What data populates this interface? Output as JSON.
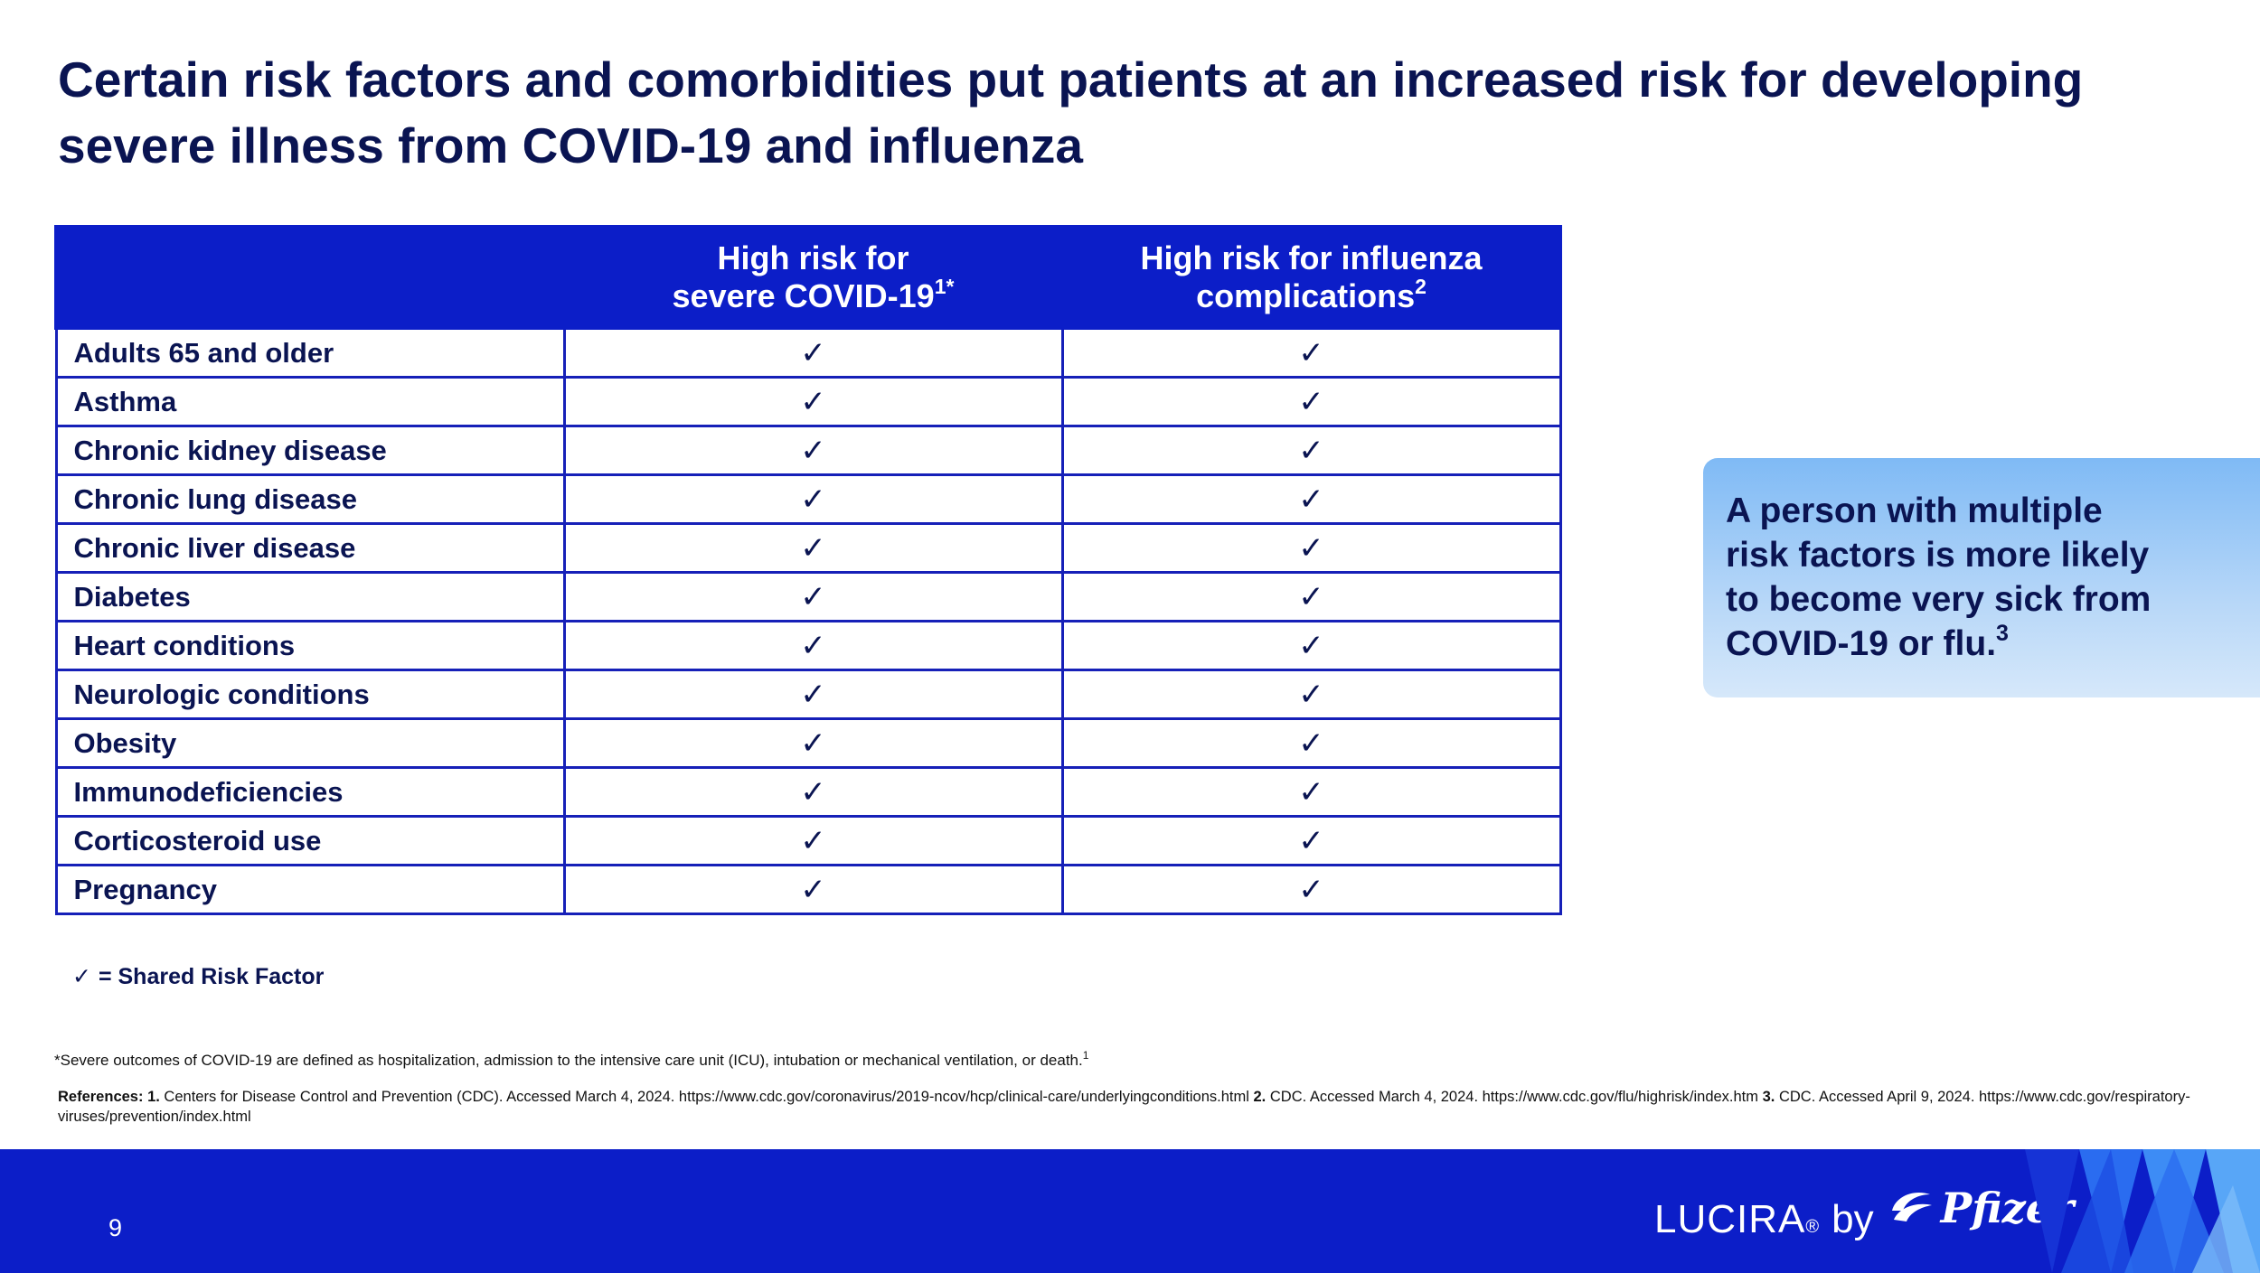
{
  "title": {
    "line1": "Certain risk factors and comorbidities put patients at an increased risk for developing",
    "line2": "severe illness from COVID-19 and influenza"
  },
  "table": {
    "headers": [
      {
        "line1": "",
        "line2": "",
        "sup": ""
      },
      {
        "line1": "High risk for",
        "line2": "severe COVID-19",
        "sup": "1*"
      },
      {
        "line1": "High risk for influenza",
        "line2": "complications",
        "sup": "2"
      }
    ],
    "check_mark": "✓",
    "rows": [
      {
        "label": "Adults 65 and older",
        "covid": "✓",
        "influenza": "✓"
      },
      {
        "label": "Asthma",
        "covid": "✓",
        "influenza": "✓"
      },
      {
        "label": "Chronic kidney disease",
        "covid": "✓",
        "influenza": "✓"
      },
      {
        "label": "Chronic lung disease",
        "covid": "✓",
        "influenza": "✓"
      },
      {
        "label": "Chronic liver disease",
        "covid": "✓",
        "influenza": "✓"
      },
      {
        "label": "Diabetes",
        "covid": "✓",
        "influenza": "✓"
      },
      {
        "label": "Heart conditions",
        "covid": "✓",
        "influenza": "✓"
      },
      {
        "label": "Neurologic conditions",
        "covid": "✓",
        "influenza": "✓"
      },
      {
        "label": "Obesity",
        "covid": "✓",
        "influenza": "✓"
      },
      {
        "label": "Immunodeficiencies",
        "covid": "✓",
        "influenza": "✓"
      },
      {
        "label": "Corticosteroid use",
        "covid": "✓",
        "influenza": "✓"
      },
      {
        "label": "Pregnancy",
        "covid": "✓",
        "influenza": "✓"
      }
    ]
  },
  "legend": {
    "symbol": "✓",
    "text": "= Shared Risk Factor"
  },
  "callout": {
    "line1": "A person with multiple",
    "line2": "risk factors is more likely",
    "line3": "to become very sick from",
    "line4": "COVID-19 or flu.",
    "sup": "3"
  },
  "footnote": {
    "text": "*Severe outcomes of COVID-19 are defined as hospitalization, admission to the intensive care unit (ICU), intubation or mechanical ventilation, or death.",
    "sup": "1"
  },
  "references": {
    "label": "References:",
    "ref1_num": "1.",
    "ref1_text": "Centers for Disease Control and Prevention (CDC). Accessed March 4, 2024. https://www.cdc.gov/coronavirus/2019-ncov/hcp/clinical-care/underlyingconditions.html",
    "ref2_num": "2.",
    "ref2_text": "CDC. Accessed March 4, 2024. https://www.cdc.gov/flu/highrisk/index.htm",
    "ref3_num": "3.",
    "ref3_text": "CDC. Accessed April 9, 2024. https://www.cdc.gov/respiratory-viruses/prevention/index.html"
  },
  "footer": {
    "page_number": "9",
    "brand_name": "LUCIRA",
    "registered": "®",
    "by": "by",
    "partner": "Pfizer"
  },
  "colors": {
    "primary_blue": "#0c1ec8",
    "navy_text": "#0a1452",
    "callout_light_blue": "#7fbaf5"
  }
}
